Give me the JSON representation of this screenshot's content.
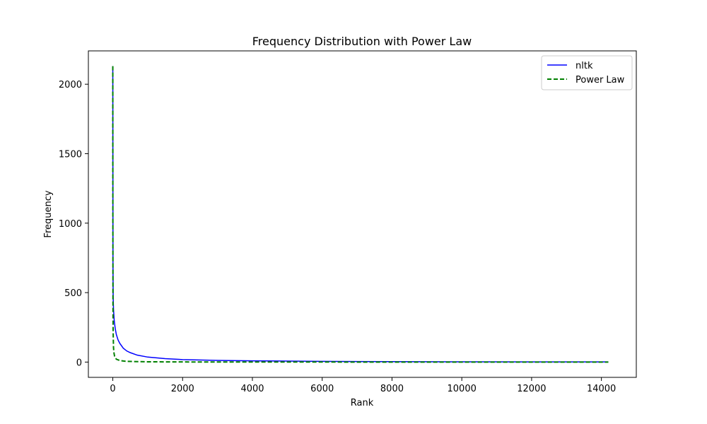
{
  "chart_data": {
    "type": "line",
    "title": "Frequency Distribution with Power Law",
    "xlabel": "Rank",
    "ylabel": "Frequency",
    "xlim": [
      -700,
      15000
    ],
    "ylim": [
      -110,
      2240
    ],
    "xticks": [
      0,
      2000,
      4000,
      6000,
      8000,
      10000,
      12000,
      14000
    ],
    "yticks": [
      0,
      500,
      1000,
      1500,
      2000
    ],
    "grid": false,
    "legend_position": "upper right",
    "series": [
      {
        "name": "nltk",
        "color": "#0000ff",
        "style": "solid",
        "x": [
          0,
          5,
          10,
          20,
          40,
          70,
          100,
          150,
          200,
          300,
          400,
          500,
          700,
          1000,
          1500,
          2000,
          3000,
          4000,
          6000,
          8000,
          10000,
          12000,
          14200
        ],
        "y": [
          2130,
          700,
          470,
          380,
          300,
          240,
          200,
          160,
          135,
          100,
          80,
          68,
          50,
          36,
          25,
          18,
          12,
          9,
          5,
          3,
          2,
          1,
          1
        ]
      },
      {
        "name": "Power Law",
        "color": "#008000",
        "style": "dashed",
        "x": [
          0,
          2,
          5,
          10,
          20,
          30,
          50,
          100,
          200,
          400,
          1000,
          2000,
          5000,
          10000,
          14200
        ],
        "y": [
          2130,
          1065,
          426,
          213,
          106,
          71,
          43,
          21,
          11,
          5,
          2,
          1,
          0.4,
          0.2,
          0.15
        ]
      }
    ]
  }
}
